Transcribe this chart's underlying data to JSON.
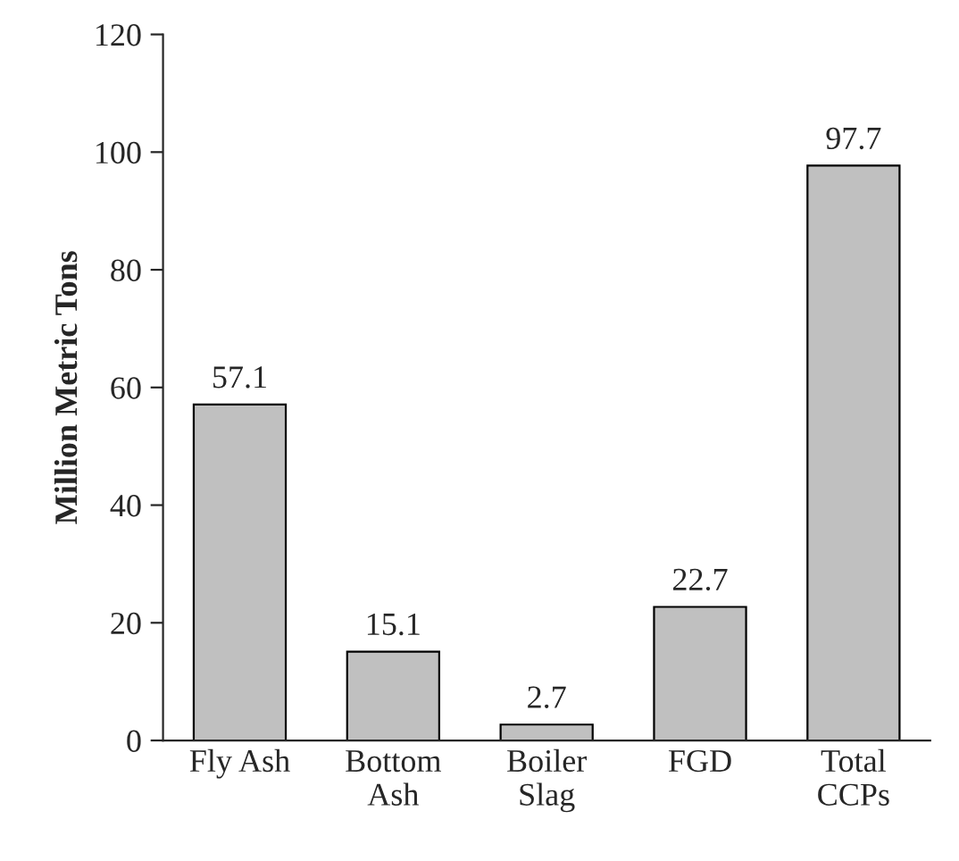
{
  "chart_data": {
    "type": "bar",
    "ylabel": "Million Metric Tons",
    "categories": [
      "Fly Ash",
      "Bottom\nAsh",
      "Boiler\nSlag",
      "FGD",
      "Total\nCCPs"
    ],
    "values": [
      57.1,
      15.1,
      2.7,
      22.7,
      97.7
    ],
    "color": "#c0c0c0",
    "ylim": [
      0,
      120
    ],
    "yticks": [
      0,
      20,
      40,
      60,
      80,
      100,
      120
    ],
    "grid": false,
    "data_labels": true
  }
}
